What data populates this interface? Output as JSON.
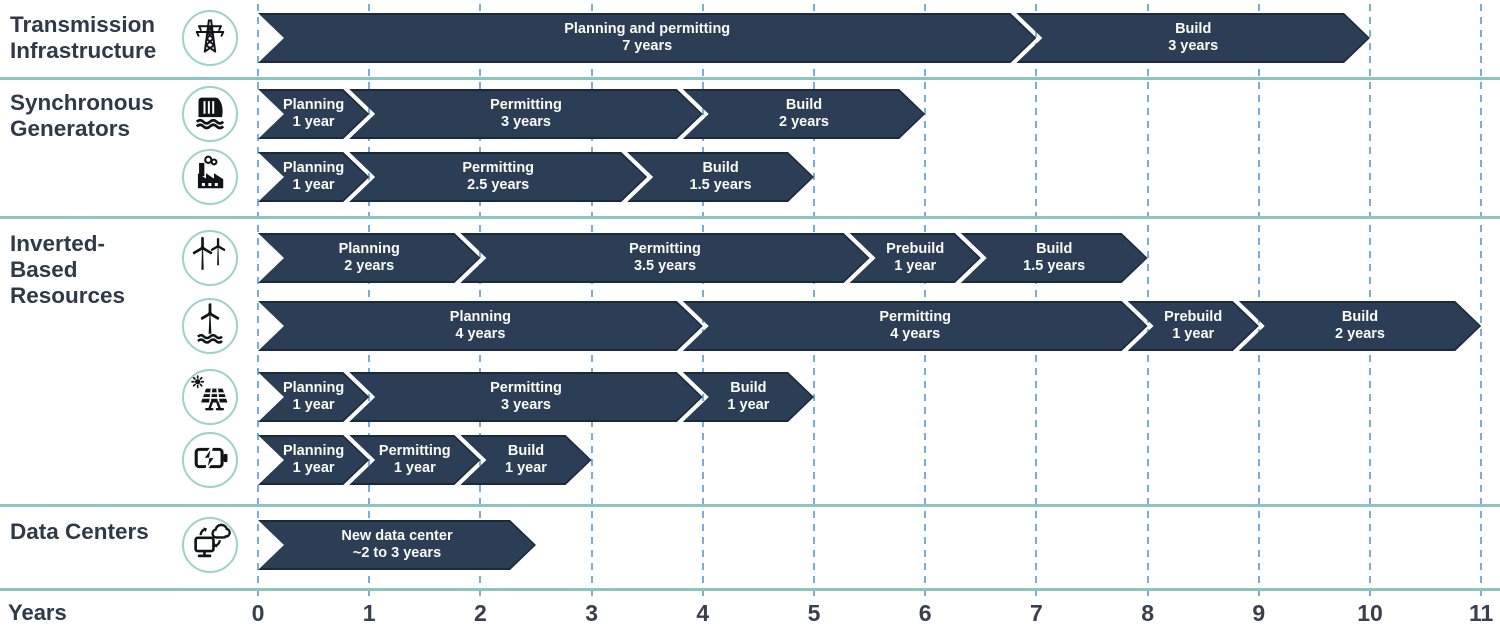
{
  "axis": {
    "label": "Years",
    "ticks": [
      0,
      1,
      2,
      3,
      4,
      5,
      6,
      7,
      8,
      9,
      10,
      11
    ]
  },
  "sections": [
    {
      "label_lines": [
        "Transmission",
        "Infrastructure"
      ]
    },
    {
      "label_lines": [
        "Synchronous",
        "Generators"
      ]
    },
    {
      "label_lines": [
        "Inverted-",
        "Based",
        "Resources"
      ]
    },
    {
      "label_lines": [
        "Data Centers"
      ]
    }
  ],
  "colors": {
    "bar_fill": "#2b3e56",
    "bar_outline": "#182a3c",
    "bar_text": "#fbfcf2",
    "separator_teal": "#8cc5c0",
    "gridline_blue": "#79aeda",
    "label_navy": "#2e3a48",
    "icon_ring_teal": "#9ed1ca"
  },
  "chart_data": {
    "type": "bar",
    "variant": "gantt-timeline",
    "title": "",
    "xlabel": "Years",
    "xlim": [
      0,
      11
    ],
    "x_ticks": [
      0,
      1,
      2,
      3,
      4,
      5,
      6,
      7,
      8,
      9,
      10,
      11
    ],
    "grid": "dashed-vertical-per-year",
    "rows": [
      {
        "group": "Transmission Infrastructure",
        "icon": "transmission-tower-icon",
        "segments": [
          {
            "phase": "Planning and permitting",
            "duration": "7 years",
            "start": 0,
            "end": 7
          },
          {
            "phase": "Build",
            "duration": "3 years",
            "start": 7,
            "end": 10
          }
        ]
      },
      {
        "group": "Synchronous Generators",
        "icon": "hydro-dam-icon",
        "segments": [
          {
            "phase": "Planning",
            "duration": "1 year",
            "start": 0,
            "end": 1
          },
          {
            "phase": "Permitting",
            "duration": "3 years",
            "start": 1,
            "end": 4
          },
          {
            "phase": "Build",
            "duration": "2 years",
            "start": 4,
            "end": 6
          }
        ]
      },
      {
        "group": "Synchronous Generators",
        "icon": "gas-plant-icon",
        "segments": [
          {
            "phase": "Planning",
            "duration": "1 year",
            "start": 0,
            "end": 1
          },
          {
            "phase": "Permitting",
            "duration": "2.5 years",
            "start": 1,
            "end": 3.5
          },
          {
            "phase": "Build",
            "duration": "1.5 years",
            "start": 3.5,
            "end": 5
          }
        ]
      },
      {
        "group": "Inverted-Based Resources",
        "icon": "wind-turbines-icon",
        "segments": [
          {
            "phase": "Planning",
            "duration": "2 years",
            "start": 0,
            "end": 2
          },
          {
            "phase": "Permitting",
            "duration": "3.5 years",
            "start": 2,
            "end": 5.5
          },
          {
            "phase": "Prebuild",
            "duration": "1 year",
            "start": 5.5,
            "end": 6.5
          },
          {
            "phase": "Build",
            "duration": "1.5 years",
            "start": 6.5,
            "end": 8
          }
        ]
      },
      {
        "group": "Inverted-Based Resources",
        "icon": "offshore-wind-icon",
        "segments": [
          {
            "phase": "Planning",
            "duration": "4 years",
            "start": 0,
            "end": 4
          },
          {
            "phase": "Permitting",
            "duration": "4 years",
            "start": 4,
            "end": 8
          },
          {
            "phase": "Prebuild",
            "duration": "1 year",
            "start": 8,
            "end": 9
          },
          {
            "phase": "Build",
            "duration": "2 years",
            "start": 9,
            "end": 11
          }
        ]
      },
      {
        "group": "Inverted-Based Resources",
        "icon": "solar-panel-icon",
        "segments": [
          {
            "phase": "Planning",
            "duration": "1 year",
            "start": 0,
            "end": 1
          },
          {
            "phase": "Permitting",
            "duration": "3 years",
            "start": 1,
            "end": 4
          },
          {
            "phase": "Build",
            "duration": "1 year",
            "start": 4,
            "end": 5
          }
        ]
      },
      {
        "group": "Inverted-Based Resources",
        "icon": "battery-icon",
        "segments": [
          {
            "phase": "Planning",
            "duration": "1 year",
            "start": 0,
            "end": 1
          },
          {
            "phase": "Permitting",
            "duration": "1 year",
            "start": 1,
            "end": 2
          },
          {
            "phase": "Build",
            "duration": "1 year",
            "start": 2,
            "end": 3
          }
        ]
      },
      {
        "group": "Data Centers",
        "icon": "data-center-icon",
        "segments": [
          {
            "phase": "New data center",
            "duration": "~2 to 3 years",
            "start": 0,
            "end": 2.5
          }
        ]
      }
    ]
  }
}
